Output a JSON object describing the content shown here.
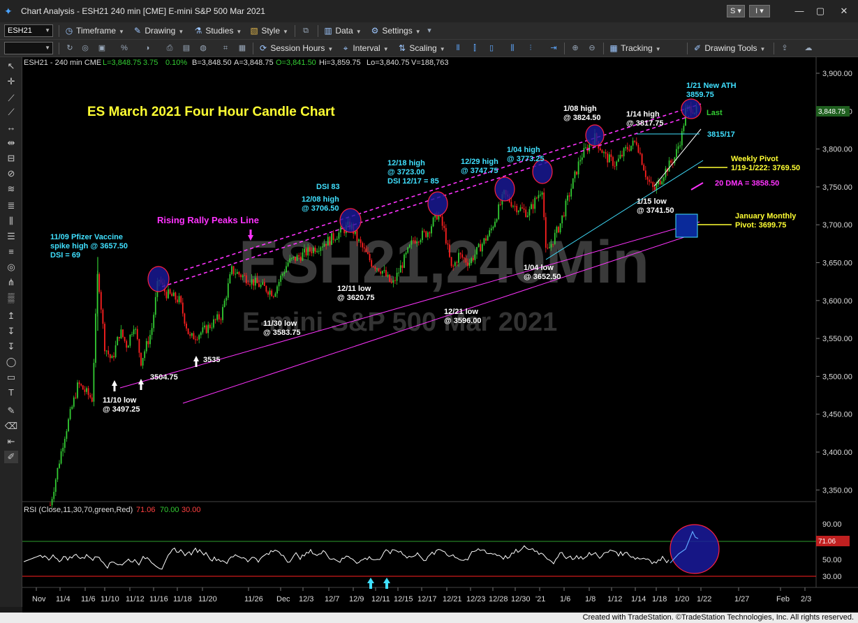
{
  "window": {
    "title": "Chart Analysis - ESH21 240 min [CME] E-mini S&P 500 Mar 2021",
    "btn_s": "S",
    "btn_i": "I"
  },
  "toolbar1": {
    "symbol": "ESH21",
    "items": [
      {
        "icon": "clock-icon",
        "glyph": "◷",
        "label": "Timeframe"
      },
      {
        "icon": "pencil-icon",
        "glyph": "✎",
        "label": "Drawing"
      },
      {
        "icon": "flask-icon",
        "glyph": "⚗",
        "label": "Studies"
      },
      {
        "icon": "brush-icon",
        "glyph": "🖌",
        "label": "Style"
      },
      {
        "icon": "bar-chart-icon",
        "glyph": "▥",
        "label": "Data"
      },
      {
        "icon": "gear-icon",
        "glyph": "⚙",
        "label": "Settings"
      }
    ]
  },
  "toolbar2": {
    "items": [
      {
        "icon": "session-hours-icon",
        "glyph": "⟳",
        "label": "Session Hours"
      },
      {
        "icon": "interval-icon",
        "glyph": "⌖",
        "label": "Interval"
      },
      {
        "icon": "scaling-icon",
        "glyph": "⇅",
        "label": "Scaling"
      },
      {
        "icon": "tracking-icon",
        "glyph": "▦",
        "label": "Tracking"
      },
      {
        "icon": "drawing-tools-icon",
        "glyph": "✐",
        "label": "Drawing Tools"
      }
    ]
  },
  "chart_header": {
    "symbol": "ESH21 - 240 min  CME",
    "last": "L=3,848.75",
    "change": "3.75",
    "pct": "0.10%",
    "bid": "B=3,848.50",
    "ask": "A=3,848.75",
    "open": "O=3,841.50",
    "high": "Hi=3,859.75",
    "low": "Lo=3,840.75",
    "volume": "V=188,763"
  },
  "watermark": {
    "line1": "ESH21,240Min",
    "line2": "E-mini S&P 500 Mar 2021"
  },
  "chart_title": "ES March 2021 Four Hour Candle Chart",
  "price_axis": {
    "ticks": [
      3900,
      3850,
      3800,
      3750,
      3700,
      3650,
      3600,
      3550,
      3500,
      3450,
      3400,
      3350
    ],
    "tick_labels": [
      "3,900.00",
      "3,850.00",
      "3,800.00",
      "3,750.00",
      "3,700.00",
      "3,650.00",
      "3,600.00",
      "3,550.00",
      "3,500.00",
      "3,450.00",
      "3,400.00",
      "3,350.00"
    ],
    "last_label": "3,848.75"
  },
  "rsi": {
    "header": "RSI (Close,11,30,70,green,Red)",
    "v1": "71.06",
    "v2": "70.00",
    "v3": "30.00",
    "ticks": [
      "90.00",
      "50.00",
      "30.00"
    ],
    "last_label": "71.06"
  },
  "x_axis": {
    "labels": [
      "Nov",
      "11/4",
      "11/6",
      "11/10",
      "11/12",
      "11/16",
      "11/18",
      "11/20",
      "11/26",
      "Dec",
      "12/3",
      "12/7",
      "12/9",
      "12/11",
      "12/15",
      "12/17",
      "12/21",
      "12/23",
      "12/28",
      "12/30",
      "'21",
      "1/6",
      "1/8",
      "1/12",
      "1/14",
      "1/18",
      "1/20",
      "1/22",
      "1/27",
      "Feb",
      "2/3"
    ]
  },
  "annotations": {
    "pfizer": [
      "11/09 Pfizer Vaccine",
      "spike high @ 3657.50",
      "DSI = 69"
    ],
    "low_1110": [
      "11/10 low",
      "@ 3497.25"
    ],
    "l3504": "3504.75",
    "l3535": "3535",
    "low_1130": [
      "11/30 low",
      "@ 3583.75"
    ],
    "rising": "Rising Rally Peaks Line",
    "dsi83": "DSI 83",
    "h1208": [
      "12/08 high",
      "@ 3706.50"
    ],
    "low_1211": [
      "12/11 low",
      "@ 3620.75"
    ],
    "h1218": [
      "12/18 high",
      "@ 3723.00",
      "DSI 12/17 = 85"
    ],
    "low_1221": [
      "12/21 low",
      "@ 3596.00"
    ],
    "h1229": [
      "12/29 high",
      "@ 3747.75"
    ],
    "h0104": [
      "1/04 high",
      "@ 3773.25"
    ],
    "low_0104": [
      "1/04 low",
      "@ 3652.50"
    ],
    "h0108": [
      "1/08 high",
      "@ 3824.50"
    ],
    "h0114": [
      "1/14  high",
      "@ 3817.75"
    ],
    "ath": [
      "1/21 New ATH",
      "3859.75"
    ],
    "last": "Last",
    "l3815": "3815/17",
    "weekly": [
      "Weekly Pivot",
      "1/19-1/222: 3769.50"
    ],
    "dma": "20 DMA = 3858.50",
    "low_0115": [
      "1/15 low",
      "@ 3741.50"
    ],
    "monthly": [
      "January Monthly",
      "Pivot: 3699.75"
    ]
  },
  "footer": "Created with TradeStation. ©TradeStation Technologies, Inc. All rights reserved.",
  "colors": {
    "up": "#33cc33",
    "down": "#ff2020",
    "cyan": "#40e0ff",
    "magenta": "#ff33ff",
    "yellow": "#ffff33",
    "navy": "#1a1a8c"
  }
}
